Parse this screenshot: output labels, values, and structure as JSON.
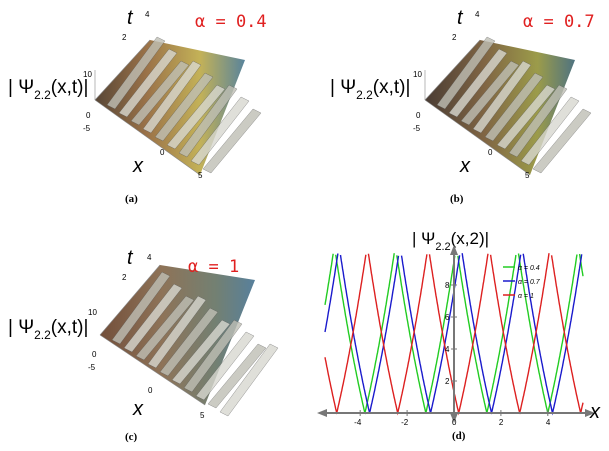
{
  "panels": [
    {
      "id": "a",
      "caption": "(a)",
      "ylabel": "| Ψ",
      "ylabel_sub": "2.2",
      "ylabel_tail": "(x,t)|",
      "t_label": "t",
      "x_label": "x",
      "alpha_text": "α = 0.4",
      "z_ticks": [
        "10",
        "0",
        "-5"
      ],
      "t_ticks": [
        "2",
        "4"
      ],
      "x_ticks": [
        "0",
        "5"
      ]
    },
    {
      "id": "b",
      "caption": "(b)",
      "ylabel": "| Ψ",
      "ylabel_sub": "2.2",
      "ylabel_tail": "(x,t)|",
      "t_label": "t",
      "x_label": "x",
      "alpha_text": "α = 0.7",
      "z_ticks": [
        "10",
        "0",
        "-5"
      ],
      "t_ticks": [
        "2",
        "4"
      ],
      "x_ticks": [
        "0",
        "5"
      ]
    },
    {
      "id": "c",
      "caption": "(c)",
      "ylabel": "| Ψ",
      "ylabel_sub": "2.2",
      "ylabel_tail": "(x,t)|",
      "t_label": "t",
      "x_label": "x",
      "alpha_text": "α = 1",
      "z_ticks": [
        "10",
        "0",
        "-5"
      ],
      "t_ticks": [
        "2",
        "4"
      ],
      "x_ticks": [
        "0",
        "5"
      ]
    }
  ],
  "panel_d": {
    "caption": "(d)",
    "title": "| Ψ",
    "title_sub": "2.2",
    "title_tail": "(x,2)|",
    "x_label": "x"
  },
  "chart_data": {
    "type": "line",
    "title": "|Ψ 2.2(x,2)|",
    "xlabel": "x",
    "ylabel": "",
    "xlim": [
      -5.5,
      5.5
    ],
    "ylim": [
      0,
      10
    ],
    "x_ticks": [
      -4,
      -2,
      0,
      2,
      4
    ],
    "y_ticks": [
      2,
      4,
      6,
      8
    ],
    "legend_position": "top-right",
    "period": 2.6,
    "series": [
      {
        "name": "α = 0.4",
        "color": "#22cc22",
        "minima_x": [
          -3.8,
          -1.2,
          1.4,
          4.0
        ],
        "min_value": 0,
        "max_value": 10
      },
      {
        "name": "α = 0.7",
        "color": "#1a1acc",
        "minima_x": [
          -3.6,
          -1.0,
          1.6,
          4.2
        ],
        "min_value": 0,
        "max_value": 10
      },
      {
        "name": "α = 1",
        "color": "#dd2020",
        "minima_x": [
          -5.0,
          -2.4,
          0.2,
          2.8
        ],
        "min_value": 0,
        "max_value": 10
      }
    ]
  }
}
